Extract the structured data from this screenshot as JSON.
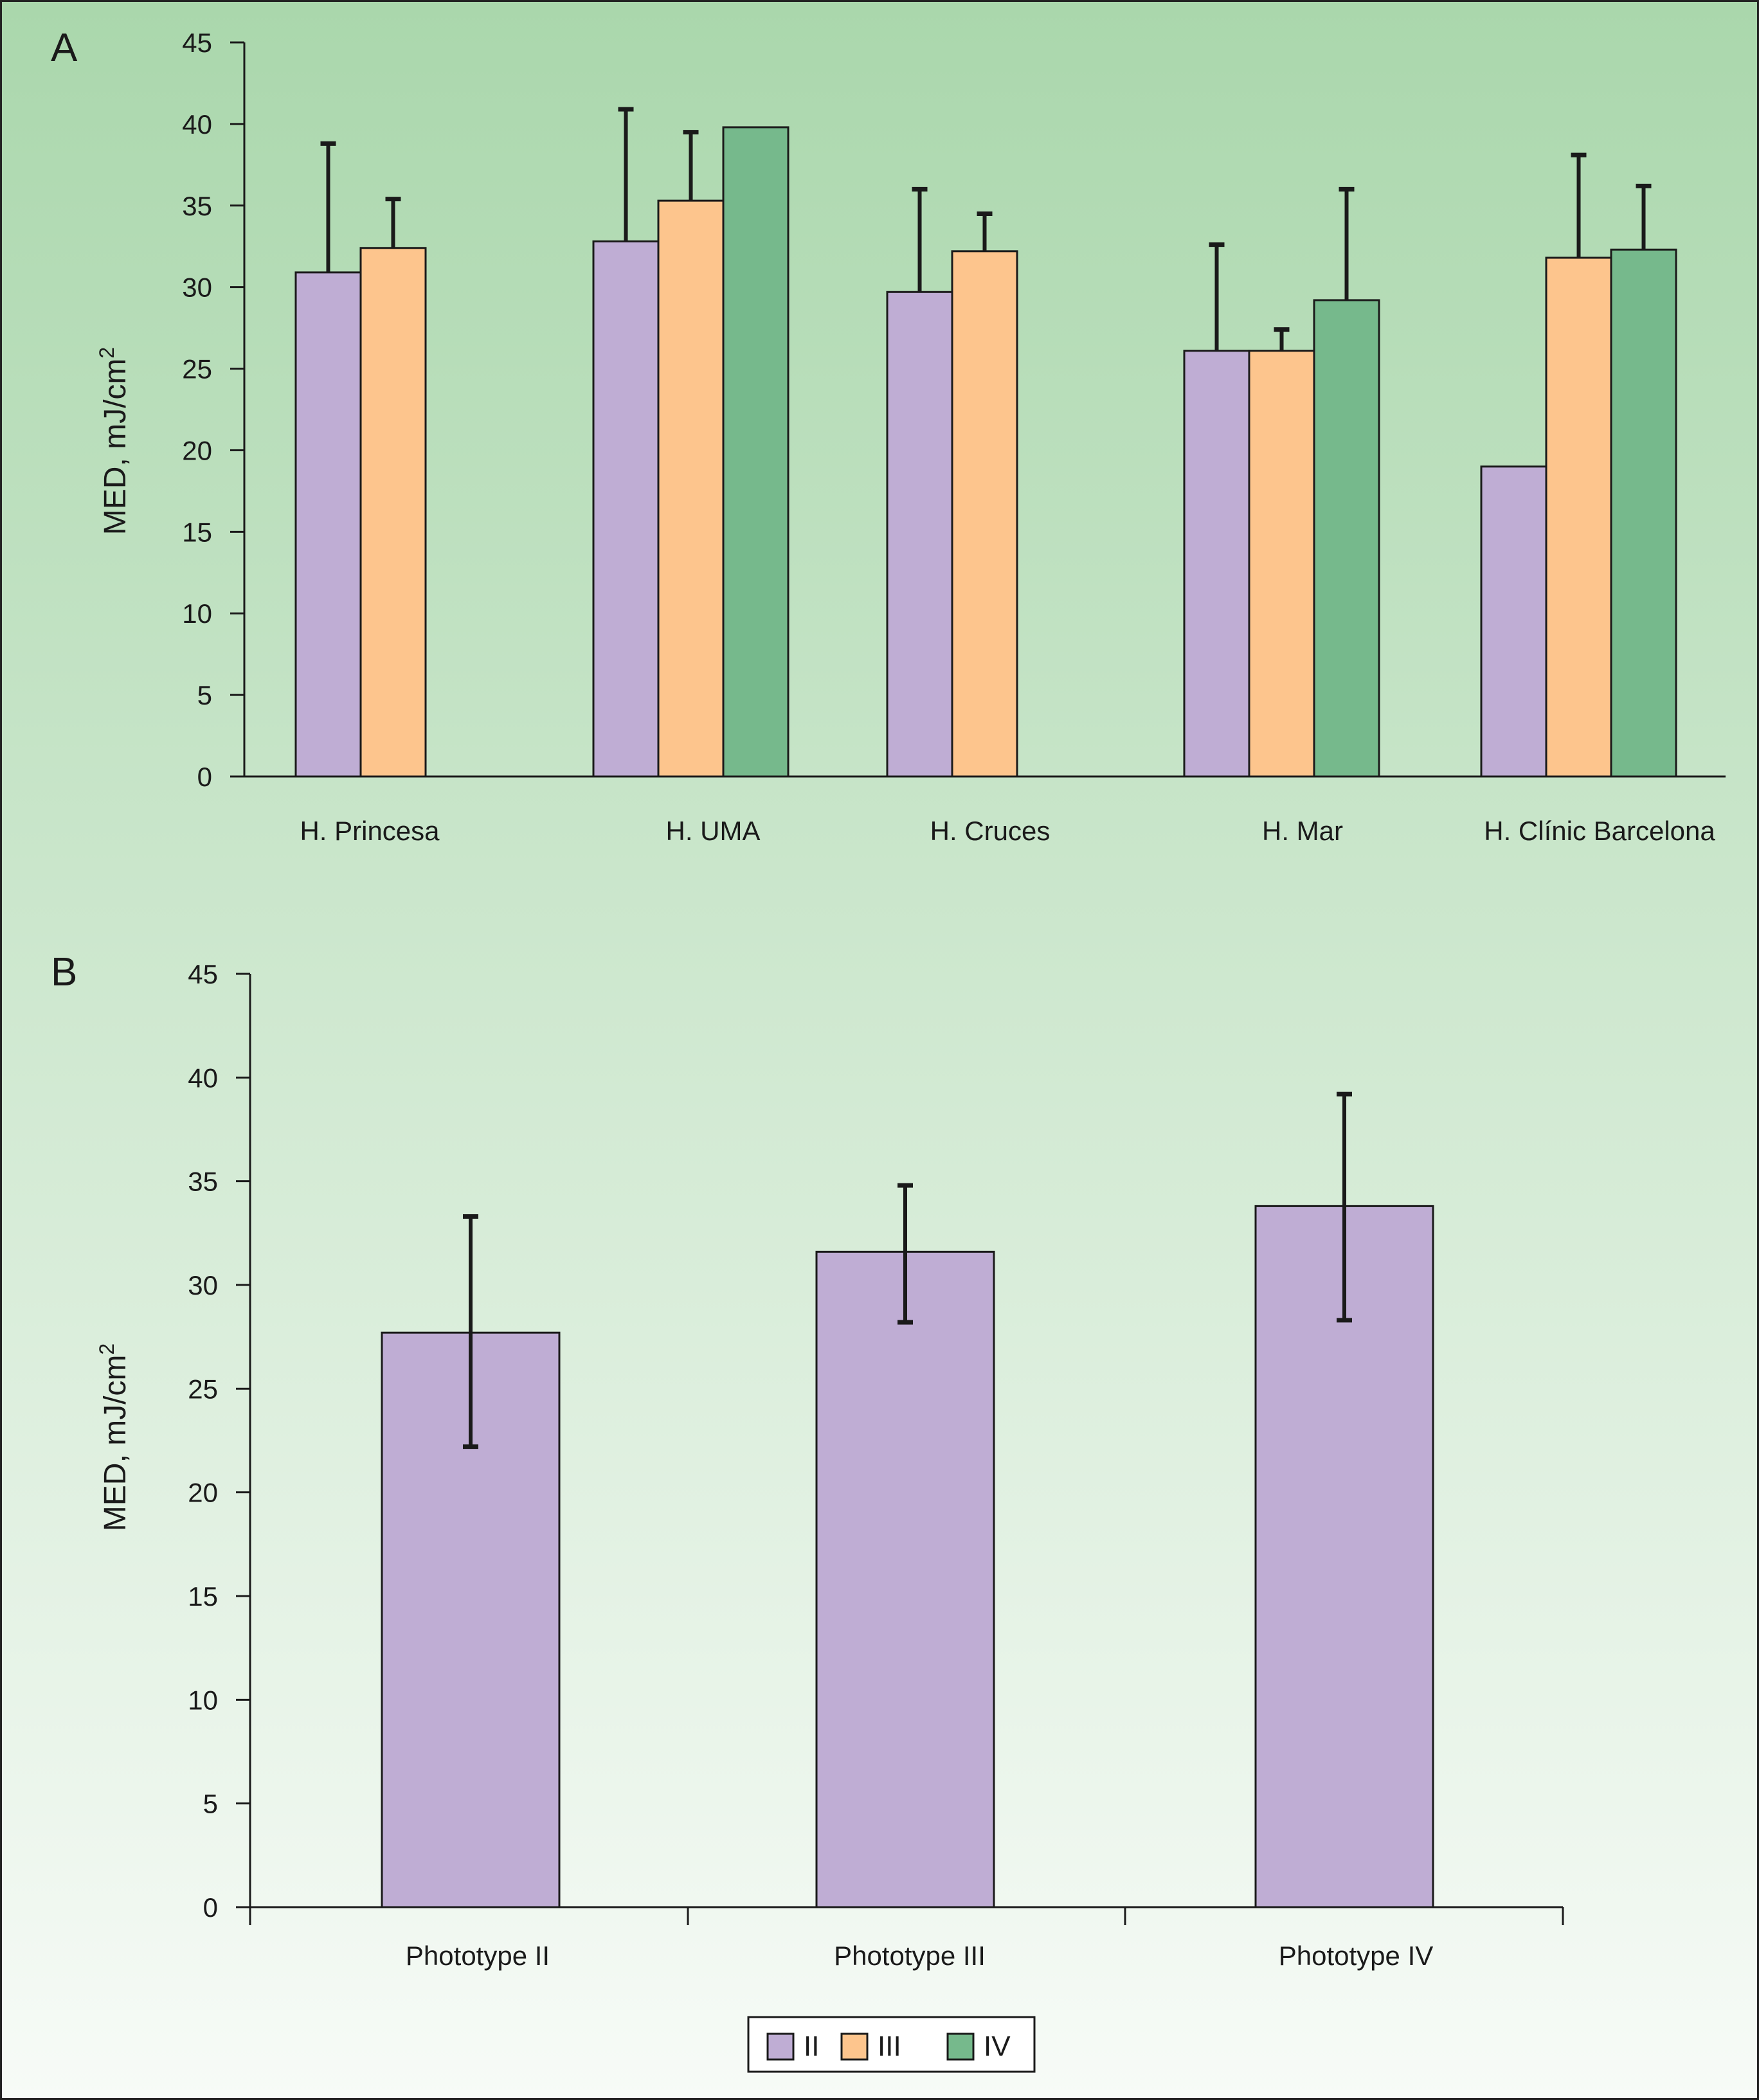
{
  "colors": {
    "background_top": "#aad7ac",
    "background_bottom": "#f7fbf7",
    "axis": "#1a1a1a",
    "error_bar": "#1a1a1a",
    "series_II": "#bfadd4",
    "series_III": "#fdc58d",
    "series_IV": "#76b98c"
  },
  "legend": {
    "items": [
      {
        "label": "II",
        "color": "#bfadd4"
      },
      {
        "label": "III",
        "color": "#fdc58d"
      },
      {
        "label": "IV",
        "color": "#76b98c"
      }
    ]
  },
  "chart_data": [
    {
      "panel": "A",
      "type": "bar",
      "ylabel": "MED, mJ/cm²",
      "ylim": [
        0,
        45
      ],
      "yticks": [
        0,
        5,
        10,
        15,
        20,
        25,
        30,
        35,
        40,
        45
      ],
      "grid": false,
      "categories": [
        "H. Princesa",
        "H. UMA",
        "H. Cruces",
        "H. Mar",
        "H. Clínic Barcelona"
      ],
      "series": [
        {
          "name": "II",
          "values": [
            30.9,
            32.8,
            29.7,
            26.1,
            19.0
          ],
          "error_upper": [
            38.8,
            40.9,
            36.0,
            32.6,
            null
          ]
        },
        {
          "name": "III",
          "values": [
            32.4,
            35.3,
            32.2,
            26.1,
            31.8
          ],
          "error_upper": [
            35.4,
            39.5,
            34.5,
            27.4,
            38.1
          ]
        },
        {
          "name": "IV",
          "values": [
            null,
            39.8,
            null,
            29.2,
            32.3
          ],
          "error_upper": [
            null,
            null,
            null,
            36.0,
            36.2
          ]
        }
      ]
    },
    {
      "panel": "B",
      "type": "bar",
      "ylabel": "MED, mJ/cm²",
      "ylim": [
        0,
        45
      ],
      "yticks": [
        0,
        5,
        10,
        15,
        20,
        25,
        30,
        35,
        40,
        45
      ],
      "grid": false,
      "categories": [
        "Phototype II",
        "Phototype III",
        "Phototype IV"
      ],
      "values": [
        27.7,
        31.6,
        33.8
      ],
      "error_lower": [
        22.2,
        28.2,
        28.3
      ],
      "error_upper": [
        33.3,
        34.8,
        39.2
      ]
    }
  ]
}
